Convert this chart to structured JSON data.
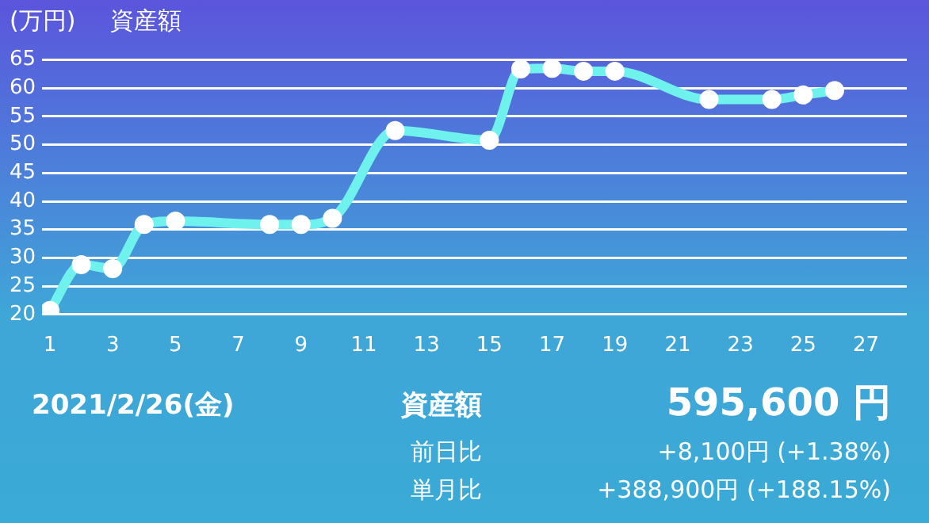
{
  "chart_data": {
    "type": "line",
    "title": "資産額",
    "ylabel": "(万円)",
    "x": [
      1,
      2,
      3,
      4,
      5,
      8,
      9,
      10,
      12,
      15,
      16,
      17,
      18,
      19,
      22,
      24,
      25,
      26
    ],
    "series": [
      {
        "color": "#6ff2ee",
        "values": [
          20.7,
          28.8,
          28.1,
          35.9,
          36.5,
          35.9,
          35.9,
          37.0,
          52.5,
          50.8,
          63.4,
          63.5,
          63.0,
          63.0,
          58.0,
          58.0,
          58.8,
          59.6
        ]
      }
    ],
    "xlim": [
      0.75,
      28.3
    ],
    "xticks": [
      1,
      3,
      5,
      7,
      9,
      11,
      13,
      15,
      17,
      19,
      21,
      23,
      25,
      27
    ],
    "ylim": [
      20,
      65
    ],
    "yticks": [
      20,
      25,
      30,
      35,
      40,
      45,
      50,
      55,
      60,
      65
    ],
    "grid": "y",
    "marker": "circle",
    "line_style": "solid",
    "legend": false,
    "annotations": [
      "2021/2/26(金)",
      "資産額",
      "595,600 円",
      "前日比",
      "+8,100円 (+1.38%)",
      "単月比",
      "+388,900円 (+188.15%)"
    ]
  }
}
